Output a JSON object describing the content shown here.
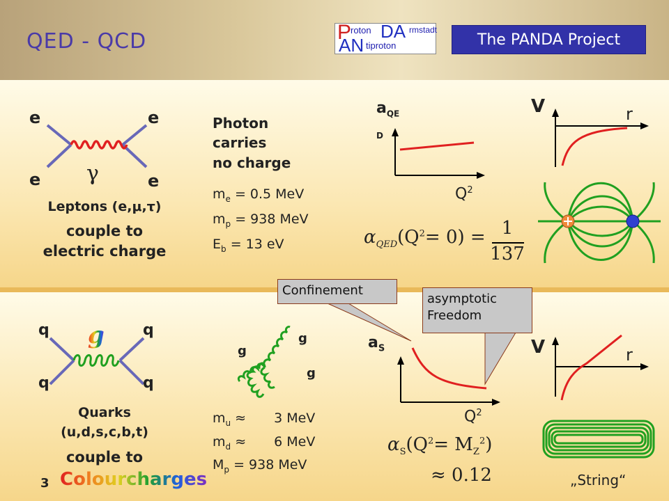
{
  "header": {
    "title": "QED - QCD",
    "logo": {
      "p": "P",
      "roton": "roton",
      "da": "DA",
      "rmstadt": "rmstadt",
      "an": "AN",
      "tiproton": "tiproton"
    },
    "project": "The PANDA Project"
  },
  "qed": {
    "e_tl": "e",
    "e_tr": "e",
    "e_bl": "e",
    "e_br": "e",
    "photon": "γ",
    "desc1": "Leptons (e,μ,τ)",
    "desc2": "couple to",
    "desc3": "electric charge",
    "photon_note": [
      "Photon",
      "carries",
      "no charge"
    ],
    "masses": [
      {
        "sym": "m",
        "sub": "e",
        "rest": "= 0.5 MeV"
      },
      {
        "sym": "m",
        "sub": "p",
        "rest": "= 938 MeV"
      },
      {
        "sym": "E",
        "sub": "b",
        "rest": "= 13 eV"
      }
    ],
    "plot_ylabel_main": "a",
    "plot_ylabel_sub": "QE",
    "plot_ylabel_sub2": "D",
    "plot_xlabel": "Q",
    "plot_xlabel_sup": "2",
    "formula_left": "α",
    "formula_sub": "QED",
    "formula_mid": "(Q",
    "formula_sup": "2",
    "formula_rest": "= 0) =",
    "formula_num": "1",
    "formula_den": "137",
    "pot_v": "V",
    "pot_r": "r"
  },
  "qcd": {
    "q_tl": "q",
    "q_tr": "q",
    "q_bl": "q",
    "q_br": "q",
    "gluon": "g",
    "g1": "g",
    "g2": "g",
    "g3": "g",
    "desc1": "Quarks",
    "desc2": "(u,d,s,c,b,t)",
    "desc3": "couple to",
    "desc4_num": "3",
    "desc4_word": "Colourcharges",
    "masses": [
      {
        "sym": "m",
        "sub": "u",
        "op": "≈",
        "rest": "3 MeV"
      },
      {
        "sym": "m",
        "sub": "d",
        "op": "≈",
        "rest": "6 MeV"
      },
      {
        "sym": "M",
        "sub": "p",
        "op": "=",
        "rest": "938 MeV"
      }
    ],
    "confinement": "Confinement",
    "asymptotic": [
      "asymptotic",
      "Freedom"
    ],
    "plot_ylabel_main": "a",
    "plot_ylabel_sub": "S",
    "plot_xlabel": "Q",
    "plot_xlabel_sup": "2",
    "formula_left": "α",
    "formula_sub": "S",
    "formula_mid": "(Q",
    "formula_sup": "2",
    "formula_eq": "= M",
    "formula_msub": "Z",
    "formula_msup": "2",
    "formula_close": ")",
    "approx": "≈ 0.12",
    "pot_v": "V",
    "pot_r": "r",
    "string": "„String“"
  },
  "colors": {
    "title": "#4a3aa8",
    "project_bg": "#3232a8",
    "curve": "#e02020",
    "field": "#20a020",
    "fermion": "#6868b8"
  }
}
